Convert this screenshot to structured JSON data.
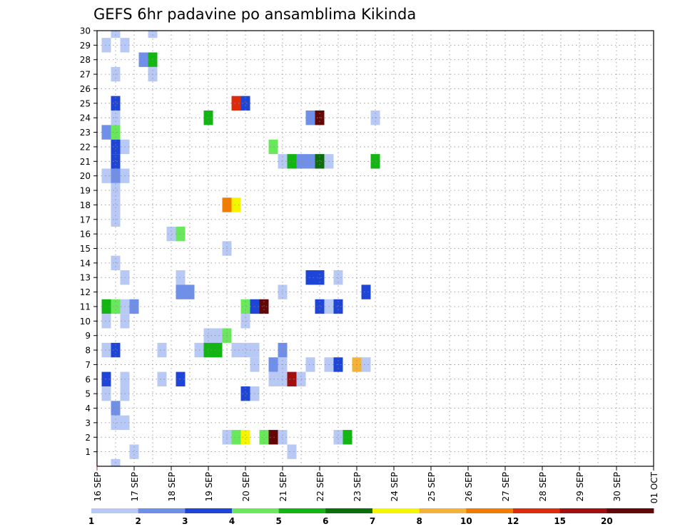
{
  "chart_data": {
    "type": "heatmap",
    "title": "GEFS 6hr padavine po ansamblima Kikinda",
    "xlabel": "",
    "ylabel": "",
    "x_tick_labels": [
      "16 SEP",
      "17 SEP",
      "18 SEP",
      "19 SEP",
      "20 SEP",
      "21 SEP",
      "22 SEP",
      "23 SEP",
      "24 SEP",
      "25 SEP",
      "26 SEP",
      "27 SEP",
      "28 SEP",
      "29 SEP",
      "30 SEP",
      "01 OCT"
    ],
    "x_range_steps": [
      0,
      60
    ],
    "y_tick_labels": [
      "1",
      "2",
      "3",
      "4",
      "5",
      "6",
      "7",
      "8",
      "9",
      "10",
      "11",
      "12",
      "13",
      "14",
      "15",
      "16",
      "17",
      "18",
      "19",
      "20",
      "21",
      "22",
      "23",
      "24",
      "25",
      "26",
      "27",
      "28",
      "29",
      "30"
    ],
    "y_range": [
      0,
      30
    ],
    "grid": true,
    "colorbar": {
      "colors": [
        "#b8c9f5",
        "#6f8fe8",
        "#1f45d6",
        "#6ae85c",
        "#12b512",
        "#0a6e0a",
        "#f5f500",
        "#f5b23a",
        "#f07c00",
        "#dc2c0c",
        "#a01010",
        "#620606"
      ],
      "labels": [
        "1",
        "2",
        "3",
        "4",
        "5",
        "6",
        "7",
        "8",
        "10",
        "12",
        "15",
        "20"
      ]
    },
    "cells": [
      [
        2,
        30,
        0
      ],
      [
        6,
        30,
        0
      ],
      [
        1,
        29,
        0
      ],
      [
        3,
        29,
        0
      ],
      [
        5,
        28,
        1
      ],
      [
        6,
        28,
        4
      ],
      [
        2,
        27,
        0
      ],
      [
        6,
        27,
        0
      ],
      [
        2,
        25,
        2
      ],
      [
        15,
        25,
        9
      ],
      [
        16,
        25,
        2
      ],
      [
        2,
        24,
        0
      ],
      [
        12,
        24,
        4
      ],
      [
        23,
        24,
        1
      ],
      [
        24,
        24,
        11
      ],
      [
        30,
        24,
        0
      ],
      [
        1,
        23,
        1
      ],
      [
        2,
        23,
        3
      ],
      [
        2,
        22,
        2
      ],
      [
        3,
        22,
        0
      ],
      [
        19,
        22,
        3
      ],
      [
        2,
        21,
        2
      ],
      [
        20,
        21,
        0
      ],
      [
        21,
        21,
        4
      ],
      [
        22,
        21,
        1
      ],
      [
        23,
        21,
        1
      ],
      [
        24,
        21,
        5
      ],
      [
        25,
        21,
        0
      ],
      [
        30,
        21,
        4
      ],
      [
        1,
        20,
        0
      ],
      [
        2,
        20,
        1
      ],
      [
        3,
        20,
        0
      ],
      [
        2,
        19,
        0
      ],
      [
        2,
        18,
        0
      ],
      [
        14,
        18,
        8
      ],
      [
        15,
        18,
        6
      ],
      [
        2,
        17,
        0
      ],
      [
        8,
        16,
        0
      ],
      [
        9,
        16,
        3
      ],
      [
        14,
        15,
        0
      ],
      [
        2,
        14,
        0
      ],
      [
        3,
        13,
        0
      ],
      [
        9,
        13,
        0
      ],
      [
        23,
        13,
        2
      ],
      [
        24,
        13,
        2
      ],
      [
        26,
        13,
        0
      ],
      [
        9,
        12,
        1
      ],
      [
        10,
        12,
        1
      ],
      [
        20,
        12,
        0
      ],
      [
        29,
        12,
        2
      ],
      [
        1,
        11,
        4
      ],
      [
        2,
        11,
        3
      ],
      [
        3,
        11,
        0
      ],
      [
        4,
        11,
        1
      ],
      [
        16,
        11,
        3
      ],
      [
        17,
        11,
        2
      ],
      [
        18,
        11,
        11
      ],
      [
        24,
        11,
        2
      ],
      [
        25,
        11,
        0
      ],
      [
        26,
        11,
        2
      ],
      [
        1,
        10,
        0
      ],
      [
        3,
        10,
        0
      ],
      [
        16,
        10,
        0
      ],
      [
        12,
        9,
        0
      ],
      [
        13,
        9,
        0
      ],
      [
        14,
        9,
        3
      ],
      [
        1,
        8,
        0
      ],
      [
        2,
        8,
        2
      ],
      [
        7,
        8,
        0
      ],
      [
        11,
        8,
        0
      ],
      [
        12,
        8,
        4
      ],
      [
        13,
        8,
        4
      ],
      [
        15,
        8,
        0
      ],
      [
        16,
        8,
        0
      ],
      [
        17,
        8,
        0
      ],
      [
        20,
        8,
        1
      ],
      [
        17,
        7,
        0
      ],
      [
        19,
        7,
        1
      ],
      [
        20,
        7,
        0
      ],
      [
        23,
        7,
        0
      ],
      [
        25,
        7,
        0
      ],
      [
        26,
        7,
        2
      ],
      [
        28,
        7,
        7
      ],
      [
        29,
        7,
        0
      ],
      [
        1,
        6,
        2
      ],
      [
        3,
        6,
        0
      ],
      [
        7,
        6,
        0
      ],
      [
        9,
        6,
        2
      ],
      [
        19,
        6,
        0
      ],
      [
        20,
        6,
        0
      ],
      [
        21,
        6,
        10
      ],
      [
        22,
        6,
        0
      ],
      [
        1,
        5,
        0
      ],
      [
        3,
        5,
        0
      ],
      [
        16,
        5,
        2
      ],
      [
        17,
        5,
        0
      ],
      [
        2,
        4,
        1
      ],
      [
        2,
        3,
        0
      ],
      [
        3,
        3,
        0
      ],
      [
        14,
        2,
        0
      ],
      [
        15,
        2,
        3
      ],
      [
        16,
        2,
        6
      ],
      [
        18,
        2,
        3
      ],
      [
        19,
        2,
        11
      ],
      [
        20,
        2,
        0
      ],
      [
        26,
        2,
        0
      ],
      [
        27,
        2,
        4
      ],
      [
        4,
        1,
        0
      ],
      [
        21,
        1,
        0
      ],
      [
        2,
        0,
        0
      ]
    ]
  }
}
